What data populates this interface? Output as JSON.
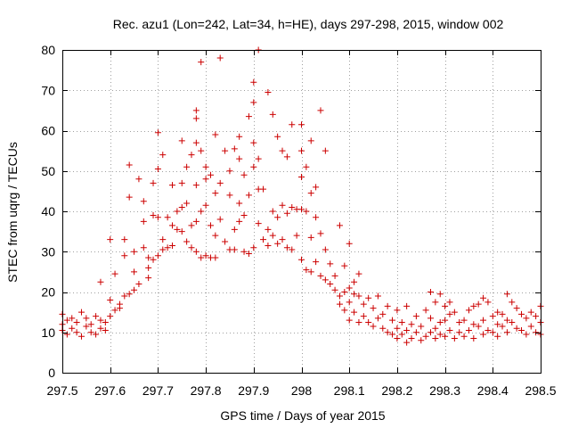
{
  "chart_data": {
    "type": "scatter",
    "title": "Rec. azu1 (Lon=242, Lat=34, h=HE), days 297-298, 2015, window 002",
    "xlabel": "GPS time / Days of year 2015",
    "ylabel": "STEC from uqrg / TECUs",
    "xlim": [
      297.5,
      298.5
    ],
    "ylim": [
      0,
      80
    ],
    "xticks": [
      297.5,
      297.6,
      297.7,
      297.8,
      297.9,
      298.0,
      298.1,
      298.2,
      298.3,
      298.4,
      298.5
    ],
    "xtick_labels": [
      "297.5",
      "297.6",
      "297.7",
      "297.8",
      "297.9",
      "298",
      "298.1",
      "298.2",
      "298.3",
      "298.4",
      "298.5"
    ],
    "yticks": [
      0,
      10,
      20,
      30,
      40,
      50,
      60,
      70,
      80
    ],
    "ytick_labels": [
      "0",
      "10",
      "20",
      "30",
      "40",
      "50",
      "60",
      "70",
      "80"
    ],
    "grid": true,
    "marker": "+",
    "marker_color": "#cc0000",
    "series": [
      {
        "name": "",
        "points": [
          [
            297.5,
            14.5
          ],
          [
            297.5,
            12.0
          ],
          [
            297.5,
            10.5
          ],
          [
            297.51,
            13.0
          ],
          [
            297.51,
            9.5
          ],
          [
            297.52,
            11.0
          ],
          [
            297.52,
            13.5
          ],
          [
            297.53,
            10.0
          ],
          [
            297.53,
            12.5
          ],
          [
            297.54,
            15.0
          ],
          [
            297.54,
            9.0
          ],
          [
            297.55,
            11.5
          ],
          [
            297.55,
            13.5
          ],
          [
            297.56,
            10.0
          ],
          [
            297.56,
            12.0
          ],
          [
            297.57,
            9.5
          ],
          [
            297.57,
            14.0
          ],
          [
            297.58,
            11.0
          ],
          [
            297.58,
            13.0
          ],
          [
            297.58,
            22.5
          ],
          [
            297.59,
            10.5
          ],
          [
            297.59,
            12.5
          ],
          [
            297.6,
            33.0
          ],
          [
            297.6,
            18.0
          ],
          [
            297.6,
            14.0
          ],
          [
            297.61,
            15.5
          ],
          [
            297.61,
            24.5
          ],
          [
            297.62,
            16.0
          ],
          [
            297.62,
            17.0
          ],
          [
            297.63,
            19.0
          ],
          [
            297.63,
            33.0
          ],
          [
            297.63,
            29.0
          ],
          [
            297.64,
            19.5
          ],
          [
            297.64,
            51.5
          ],
          [
            297.64,
            43.5
          ],
          [
            297.65,
            20.5
          ],
          [
            297.65,
            25.0
          ],
          [
            297.65,
            30.0
          ],
          [
            297.66,
            48.0
          ],
          [
            297.66,
            22.0
          ],
          [
            297.67,
            37.5
          ],
          [
            297.67,
            42.5
          ],
          [
            297.67,
            31.0
          ],
          [
            297.68,
            23.5
          ],
          [
            297.68,
            26.0
          ],
          [
            297.68,
            28.5
          ],
          [
            297.69,
            39.0
          ],
          [
            297.69,
            47.0
          ],
          [
            297.69,
            28.0
          ],
          [
            297.7,
            59.5
          ],
          [
            297.7,
            50.5
          ],
          [
            297.7,
            38.5
          ],
          [
            297.7,
            29.0
          ],
          [
            297.71,
            54.0
          ],
          [
            297.71,
            33.0
          ],
          [
            297.71,
            30.5
          ],
          [
            297.72,
            38.5
          ],
          [
            297.72,
            31.0
          ],
          [
            297.73,
            46.5
          ],
          [
            297.73,
            36.5
          ],
          [
            297.73,
            31.5
          ],
          [
            297.74,
            40.0
          ],
          [
            297.74,
            35.5
          ],
          [
            297.75,
            57.5
          ],
          [
            297.75,
            47.0
          ],
          [
            297.75,
            41.0
          ],
          [
            297.75,
            35.0
          ],
          [
            297.76,
            51.0
          ],
          [
            297.76,
            42.0
          ],
          [
            297.76,
            32.5
          ],
          [
            297.77,
            54.0
          ],
          [
            297.77,
            36.5
          ],
          [
            297.77,
            31.0
          ],
          [
            297.78,
            65.0
          ],
          [
            297.78,
            63.0
          ],
          [
            297.78,
            57.0
          ],
          [
            297.78,
            46.5
          ],
          [
            297.78,
            37.5
          ],
          [
            297.78,
            30.0
          ],
          [
            297.79,
            77.0
          ],
          [
            297.79,
            55.0
          ],
          [
            297.79,
            40.0
          ],
          [
            297.79,
            28.5
          ],
          [
            297.8,
            51.0
          ],
          [
            297.8,
            48.0
          ],
          [
            297.8,
            41.5
          ],
          [
            297.8,
            29.0
          ],
          [
            297.81,
            49.0
          ],
          [
            297.81,
            36.5
          ],
          [
            297.81,
            28.5
          ],
          [
            297.82,
            59.0
          ],
          [
            297.82,
            44.5
          ],
          [
            297.82,
            34.0
          ],
          [
            297.82,
            28.5
          ],
          [
            297.83,
            78.0
          ],
          [
            297.83,
            47.0
          ],
          [
            297.83,
            38.0
          ],
          [
            297.84,
            55.0
          ],
          [
            297.84,
            32.5
          ],
          [
            297.85,
            50.0
          ],
          [
            297.85,
            44.0
          ],
          [
            297.85,
            30.5
          ],
          [
            297.86,
            55.5
          ],
          [
            297.86,
            35.5
          ],
          [
            297.86,
            30.5
          ],
          [
            297.87,
            58.5
          ],
          [
            297.87,
            53.0
          ],
          [
            297.87,
            42.0
          ],
          [
            297.87,
            37.5
          ],
          [
            297.88,
            49.0
          ],
          [
            297.88,
            39.0
          ],
          [
            297.88,
            30.0
          ],
          [
            297.89,
            63.5
          ],
          [
            297.89,
            44.0
          ],
          [
            297.89,
            29.5
          ],
          [
            297.9,
            72.0
          ],
          [
            297.9,
            67.0
          ],
          [
            297.9,
            57.0
          ],
          [
            297.9,
            51.0
          ],
          [
            297.9,
            31.0
          ],
          [
            297.91,
            80.0
          ],
          [
            297.91,
            53.0
          ],
          [
            297.91,
            45.5
          ],
          [
            297.91,
            37.0
          ],
          [
            297.92,
            45.5
          ],
          [
            297.92,
            33.0
          ],
          [
            297.93,
            69.5
          ],
          [
            297.93,
            35.5
          ],
          [
            297.93,
            31.5
          ],
          [
            297.94,
            64.0
          ],
          [
            297.94,
            40.0
          ],
          [
            297.94,
            34.0
          ],
          [
            297.95,
            58.5
          ],
          [
            297.95,
            38.5
          ],
          [
            297.95,
            32.0
          ],
          [
            297.96,
            55.0
          ],
          [
            297.96,
            41.5
          ],
          [
            297.96,
            33.0
          ],
          [
            297.97,
            53.5
          ],
          [
            297.97,
            39.5
          ],
          [
            297.97,
            31.0
          ],
          [
            297.98,
            61.5
          ],
          [
            297.98,
            41.0
          ],
          [
            297.98,
            30.5
          ],
          [
            297.99,
            40.5
          ],
          [
            297.99,
            34.0
          ],
          [
            298.0,
            61.5
          ],
          [
            298.0,
            55.0
          ],
          [
            298.0,
            48.5
          ],
          [
            298.0,
            40.5
          ],
          [
            298.0,
            28.0
          ],
          [
            298.01,
            51.0
          ],
          [
            298.01,
            40.0
          ],
          [
            298.01,
            25.5
          ],
          [
            298.02,
            57.5
          ],
          [
            298.02,
            44.5
          ],
          [
            298.02,
            33.5
          ],
          [
            298.02,
            25.0
          ],
          [
            298.03,
            46.0
          ],
          [
            298.03,
            38.5
          ],
          [
            298.03,
            27.5
          ],
          [
            298.04,
            65.0
          ],
          [
            298.04,
            34.5
          ],
          [
            298.04,
            24.0
          ],
          [
            298.05,
            55.0
          ],
          [
            298.05,
            30.5
          ],
          [
            298.05,
            23.0
          ],
          [
            298.06,
            27.0
          ],
          [
            298.06,
            22.0
          ],
          [
            298.07,
            24.0
          ],
          [
            298.07,
            20.5
          ],
          [
            298.08,
            36.5
          ],
          [
            298.08,
            19.0
          ],
          [
            298.08,
            17.0
          ],
          [
            298.09,
            26.5
          ],
          [
            298.09,
            20.0
          ],
          [
            298.09,
            15.5
          ],
          [
            298.1,
            32.0
          ],
          [
            298.1,
            21.0
          ],
          [
            298.1,
            17.5
          ],
          [
            298.1,
            13.0
          ],
          [
            298.11,
            22.5
          ],
          [
            298.11,
            19.5
          ],
          [
            298.11,
            15.0
          ],
          [
            298.12,
            24.5
          ],
          [
            298.12,
            19.0
          ],
          [
            298.12,
            12.5
          ],
          [
            298.13,
            17.0
          ],
          [
            298.13,
            14.0
          ],
          [
            298.14,
            18.5
          ],
          [
            298.14,
            12.5
          ],
          [
            298.15,
            16.0
          ],
          [
            298.15,
            11.5
          ],
          [
            298.16,
            19.0
          ],
          [
            298.16,
            13.5
          ],
          [
            298.17,
            14.5
          ],
          [
            298.17,
            11.0
          ],
          [
            298.18,
            16.5
          ],
          [
            298.18,
            10.0
          ],
          [
            298.19,
            13.0
          ],
          [
            298.19,
            9.5
          ],
          [
            298.2,
            15.5
          ],
          [
            298.2,
            11.0
          ],
          [
            298.2,
            8.5
          ],
          [
            298.21,
            12.5
          ],
          [
            298.21,
            9.5
          ],
          [
            298.22,
            16.5
          ],
          [
            298.22,
            10.5
          ],
          [
            298.22,
            7.5
          ],
          [
            298.23,
            12.0
          ],
          [
            298.23,
            8.5
          ],
          [
            298.24,
            14.0
          ],
          [
            298.24,
            10.0
          ],
          [
            298.25,
            11.5
          ],
          [
            298.25,
            8.0
          ],
          [
            298.26,
            15.5
          ],
          [
            298.26,
            9.0
          ],
          [
            298.27,
            20.0
          ],
          [
            298.27,
            13.5
          ],
          [
            298.27,
            10.0
          ],
          [
            298.28,
            17.5
          ],
          [
            298.28,
            11.0
          ],
          [
            298.28,
            8.5
          ],
          [
            298.29,
            19.5
          ],
          [
            298.29,
            12.5
          ],
          [
            298.29,
            9.5
          ],
          [
            298.3,
            16.5
          ],
          [
            298.3,
            13.0
          ],
          [
            298.3,
            9.0
          ],
          [
            298.31,
            17.5
          ],
          [
            298.31,
            14.5
          ],
          [
            298.31,
            10.5
          ],
          [
            298.32,
            15.0
          ],
          [
            298.32,
            8.5
          ],
          [
            298.33,
            12.5
          ],
          [
            298.33,
            10.0
          ],
          [
            298.34,
            13.0
          ],
          [
            298.34,
            9.0
          ],
          [
            298.35,
            15.5
          ],
          [
            298.35,
            10.5
          ],
          [
            298.36,
            16.5
          ],
          [
            298.36,
            12.0
          ],
          [
            298.36,
            8.5
          ],
          [
            298.37,
            17.0
          ],
          [
            298.37,
            11.5
          ],
          [
            298.38,
            18.5
          ],
          [
            298.38,
            13.0
          ],
          [
            298.38,
            9.5
          ],
          [
            298.39,
            17.5
          ],
          [
            298.39,
            10.5
          ],
          [
            298.4,
            14.0
          ],
          [
            298.4,
            10.0
          ],
          [
            298.41,
            15.0
          ],
          [
            298.41,
            12.0
          ],
          [
            298.41,
            9.0
          ],
          [
            298.42,
            14.5
          ],
          [
            298.42,
            11.5
          ],
          [
            298.43,
            19.5
          ],
          [
            298.43,
            13.0
          ],
          [
            298.43,
            10.0
          ],
          [
            298.44,
            17.5
          ],
          [
            298.44,
            12.5
          ],
          [
            298.45,
            16.0
          ],
          [
            298.45,
            11.0
          ],
          [
            298.46,
            14.5
          ],
          [
            298.46,
            10.5
          ],
          [
            298.47,
            13.5
          ],
          [
            298.47,
            9.5
          ],
          [
            298.48,
            15.0
          ],
          [
            298.48,
            11.5
          ],
          [
            298.49,
            14.0
          ],
          [
            298.49,
            10.0
          ],
          [
            298.5,
            16.5
          ],
          [
            298.5,
            12.5
          ],
          [
            298.5,
            9.5
          ]
        ]
      }
    ]
  }
}
